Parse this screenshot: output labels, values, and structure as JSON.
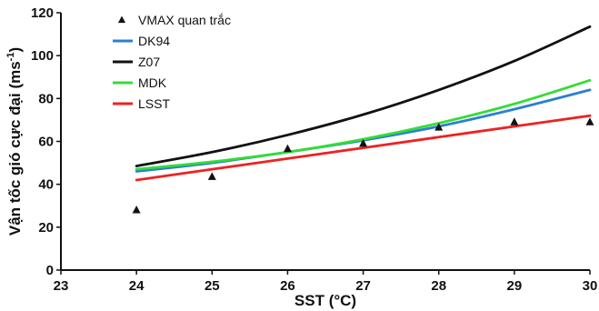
{
  "chart_data": {
    "type": "line",
    "xlabel": "SST (°C)",
    "ylabel": "Vận tốc gió cực đại (ms",
    "ylabel_sup": "-1",
    "ylabel_close": ")",
    "xlim": [
      23,
      30
    ],
    "ylim": [
      0,
      120
    ],
    "xticks": [
      23,
      24,
      25,
      26,
      27,
      28,
      29,
      30
    ],
    "yticks": [
      0,
      20,
      40,
      60,
      80,
      100,
      120
    ],
    "grid": false,
    "legend_position": "top-left",
    "scatter": {
      "name": "VMAX quan trắc",
      "color": "#111111",
      "marker": "triangle",
      "x": [
        24,
        25,
        26,
        27,
        28,
        29,
        30
      ],
      "y": [
        28,
        43.5,
        56.5,
        59,
        66.5,
        69,
        69
      ]
    },
    "series": [
      {
        "name": "DK94",
        "color": "#2a7fd4",
        "x": [
          24,
          25,
          26,
          27,
          28,
          29,
          30
        ],
        "y": [
          46,
          50,
          55,
          60.5,
          67,
          75,
          84
        ]
      },
      {
        "name": "Z07",
        "color": "#111111",
        "x": [
          24,
          25,
          26,
          27,
          28,
          29,
          30
        ],
        "y": [
          48.5,
          55,
          63,
          72.5,
          84,
          97.5,
          113.5
        ]
      },
      {
        "name": "MDK",
        "color": "#33dd33",
        "x": [
          24,
          25,
          26,
          27,
          28,
          29,
          30
        ],
        "y": [
          47,
          50.5,
          55,
          61,
          68.5,
          77.5,
          88.5
        ]
      },
      {
        "name": "LSST",
        "color": "#ee2222",
        "x": [
          24,
          25,
          26,
          27,
          28,
          29,
          30
        ],
        "y": [
          42,
          47,
          52,
          57,
          62,
          67,
          72
        ]
      }
    ]
  }
}
